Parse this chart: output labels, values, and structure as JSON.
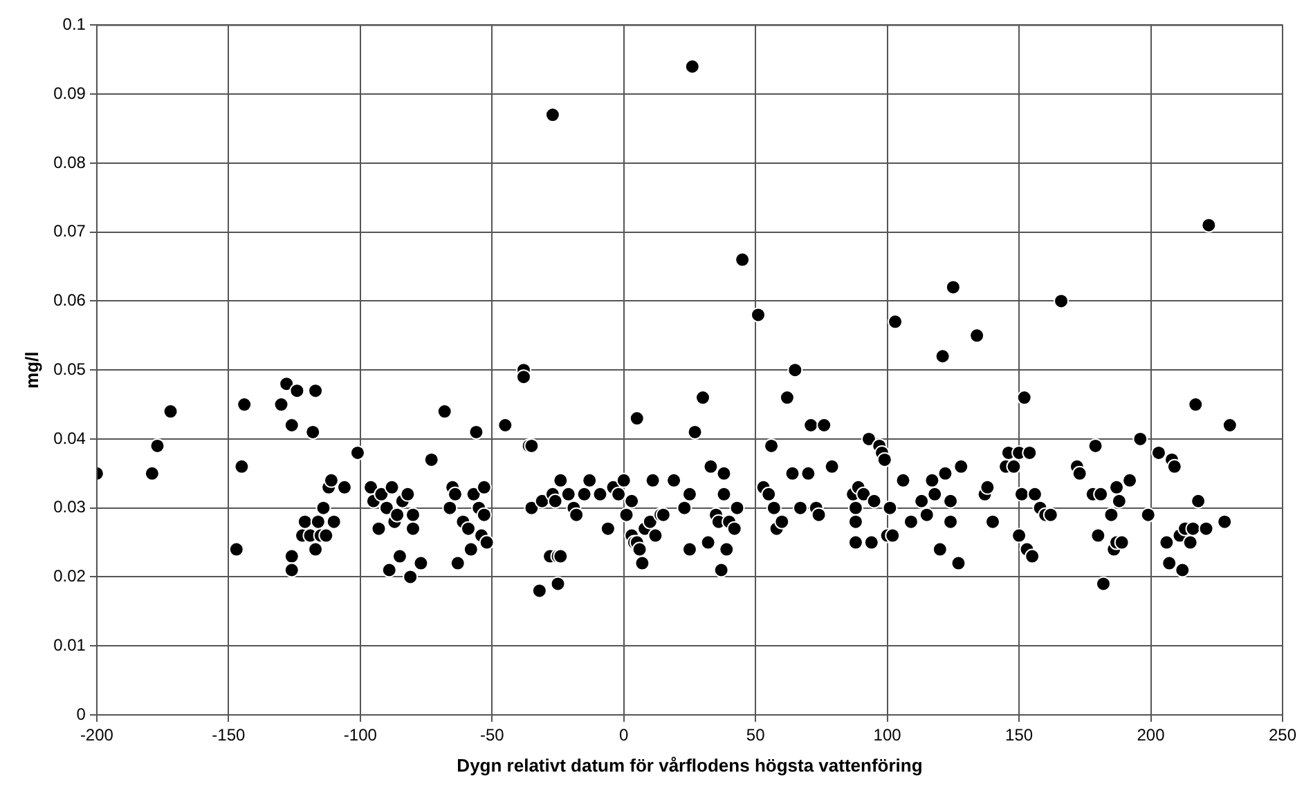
{
  "chart_data": {
    "type": "scatter",
    "xlabel": "Dygn relativt datum för vårflodens högsta vattenföring",
    "ylabel": "mg/l",
    "color": "#000000",
    "marker": "circle",
    "grid": true,
    "legend": false,
    "xlim": [
      -200,
      250
    ],
    "xticks": [
      -200,
      -150,
      -100,
      -50,
      0,
      50,
      100,
      150,
      200,
      250
    ],
    "ylim": [
      0,
      0.1
    ],
    "yticks": [
      0,
      0.01,
      0.02,
      0.03,
      0.04,
      0.05,
      0.06,
      0.07,
      0.08,
      0.09,
      0.1
    ],
    "x": [
      -200,
      -179,
      -177,
      -172,
      -147,
      -145,
      -144,
      -130,
      -128,
      -126,
      -126,
      -126,
      -124,
      -122,
      -121,
      -119,
      -118,
      -117,
      -117,
      -116,
      -115,
      -114,
      -113,
      -112,
      -111,
      -110,
      -106,
      -101,
      -96,
      -95,
      -93,
      -92,
      -90,
      -89,
      -88,
      -87,
      -86,
      -85,
      -84,
      -82,
      -81,
      -80,
      -80,
      -77,
      -73,
      -68,
      -66,
      -65,
      -64,
      -63,
      -61,
      -59,
      -58,
      -57,
      -56,
      -55,
      -54,
      -53,
      -53,
      -52,
      -45,
      -38,
      -38,
      -36,
      -35,
      -35,
      -32,
      -31,
      -28,
      -27,
      -27,
      -26,
      -25,
      -25,
      -24,
      -24,
      -21,
      -19,
      -18,
      -15,
      -13,
      -9,
      -6,
      -4,
      -2,
      0,
      1,
      3,
      3,
      4,
      5,
      6,
      5,
      7,
      8,
      10,
      11,
      12,
      14,
      15,
      19,
      23,
      25,
      25,
      26,
      27,
      30,
      32,
      33,
      35,
      36,
      37,
      38,
      38,
      39,
      40,
      42,
      43,
      45,
      51,
      53,
      55,
      56,
      57,
      58,
      60,
      62,
      64,
      65,
      67,
      70,
      71,
      73,
      74,
      76,
      79,
      87,
      88,
      88,
      88,
      89,
      91,
      93,
      94,
      95,
      97,
      98,
      99,
      100,
      101,
      102,
      103,
      106,
      109,
      113,
      115,
      117,
      118,
      120,
      121,
      122,
      124,
      124,
      125,
      127,
      128,
      134,
      137,
      138,
      140,
      145,
      146,
      148,
      150,
      150,
      152,
      151,
      153,
      154,
      155,
      156,
      158,
      160,
      162,
      166,
      172,
      173,
      178,
      179,
      180,
      181,
      182,
      185,
      186,
      187,
      187,
      188,
      189,
      192,
      196,
      199,
      203,
      206,
      207,
      208,
      209,
      211,
      212,
      213,
      215,
      216,
      217,
      218,
      221,
      222,
      228,
      230
    ],
    "values": [
      0.035,
      0.035,
      0.039,
      0.044,
      0.024,
      0.036,
      0.045,
      0.045,
      0.048,
      0.042,
      0.023,
      0.021,
      0.047,
      0.026,
      0.028,
      0.026,
      0.041,
      0.024,
      0.047,
      0.028,
      0.026,
      0.03,
      0.026,
      0.033,
      0.034,
      0.028,
      0.033,
      0.038,
      0.033,
      0.031,
      0.027,
      0.032,
      0.03,
      0.021,
      0.033,
      0.028,
      0.029,
      0.023,
      0.031,
      0.032,
      0.02,
      0.029,
      0.027,
      0.022,
      0.037,
      0.044,
      0.03,
      0.033,
      0.032,
      0.022,
      0.028,
      0.027,
      0.024,
      0.032,
      0.041,
      0.03,
      0.026,
      0.033,
      0.029,
      0.025,
      0.042,
      0.05,
      0.049,
      0.039,
      0.039,
      0.03,
      0.018,
      0.031,
      0.023,
      0.087,
      0.032,
      0.031,
      0.019,
      0.023,
      0.023,
      0.034,
      0.032,
      0.03,
      0.029,
      0.032,
      0.034,
      0.032,
      0.027,
      0.033,
      0.032,
      0.034,
      0.029,
      0.031,
      0.026,
      0.025,
      0.025,
      0.024,
      0.043,
      0.022,
      0.027,
      0.028,
      0.034,
      0.026,
      0.029,
      0.029,
      0.034,
      0.03,
      0.032,
      0.024,
      0.094,
      0.041,
      0.046,
      0.025,
      0.036,
      0.029,
      0.028,
      0.021,
      0.035,
      0.032,
      0.024,
      0.028,
      0.027,
      0.03,
      0.066,
      0.058,
      0.033,
      0.032,
      0.039,
      0.03,
      0.027,
      0.028,
      0.046,
      0.035,
      0.05,
      0.03,
      0.035,
      0.042,
      0.03,
      0.029,
      0.042,
      0.036,
      0.032,
      0.03,
      0.028,
      0.025,
      0.033,
      0.032,
      0.04,
      0.025,
      0.031,
      0.039,
      0.038,
      0.037,
      0.026,
      0.03,
      0.026,
      0.057,
      0.034,
      0.028,
      0.031,
      0.029,
      0.034,
      0.032,
      0.024,
      0.052,
      0.035,
      0.031,
      0.028,
      0.062,
      0.022,
      0.036,
      0.055,
      0.032,
      0.033,
      0.028,
      0.036,
      0.038,
      0.036,
      0.038,
      0.026,
      0.046,
      0.032,
      0.024,
      0.038,
      0.023,
      0.032,
      0.03,
      0.029,
      0.029,
      0.06,
      0.036,
      0.035,
      0.032,
      0.039,
      0.026,
      0.032,
      0.019,
      0.029,
      0.024,
      0.025,
      0.033,
      0.031,
      0.025,
      0.034,
      0.04,
      0.029,
      0.038,
      0.025,
      0.022,
      0.037,
      0.036,
      0.026,
      0.021,
      0.027,
      0.025,
      0.027,
      0.045,
      0.031,
      0.027,
      0.071,
      0.028,
      0.042
    ]
  }
}
